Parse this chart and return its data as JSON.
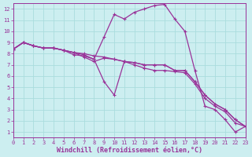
{
  "xlabel": "Windchill (Refroidissement éolien,°C)",
  "bg_color": "#cceef0",
  "grid_color": "#aadddd",
  "line_color": "#993399",
  "xlim": [
    0,
    23
  ],
  "ylim": [
    0.5,
    12.5
  ],
  "xticks": [
    0,
    1,
    2,
    3,
    4,
    5,
    6,
    7,
    8,
    9,
    10,
    11,
    12,
    13,
    14,
    15,
    16,
    17,
    18,
    19,
    20,
    21,
    22,
    23
  ],
  "yticks": [
    1,
    2,
    3,
    4,
    5,
    6,
    7,
    8,
    9,
    10,
    11,
    12
  ],
  "lw": 0.9,
  "markersize": 3.5,
  "tick_fontsize": 5.0,
  "label_fontsize": 6.0,
  "line1_x": [
    0,
    1,
    2,
    3,
    4,
    5,
    6,
    7,
    8,
    9,
    10,
    11,
    12,
    13,
    14,
    15,
    16,
    17,
    18,
    19,
    20,
    21,
    22,
    23
  ],
  "line1_y": [
    8.4,
    9.0,
    8.7,
    8.5,
    8.5,
    8.3,
    7.9,
    7.8,
    7.5,
    9.5,
    11.5,
    11.1,
    11.7,
    12.0,
    12.3,
    12.4,
    11.1,
    10.0,
    6.5,
    3.3,
    3.0,
    2.1,
    1.0,
    1.5
  ],
  "line2_x": [
    0,
    1,
    2,
    3,
    4,
    5,
    6,
    7,
    8,
    9,
    10,
    11,
    12,
    13,
    14,
    15,
    16,
    17,
    18,
    19,
    20,
    21,
    22,
    23
  ],
  "line2_y": [
    8.4,
    9.0,
    8.7,
    8.5,
    8.5,
    8.3,
    8.1,
    8.0,
    7.8,
    7.7,
    7.5,
    7.3,
    7.2,
    7.0,
    7.0,
    7.0,
    6.5,
    6.5,
    5.5,
    4.3,
    3.5,
    3.0,
    2.1,
    1.5
  ],
  "line3_x": [
    0,
    1,
    2,
    3,
    4,
    5,
    6,
    7,
    8,
    9,
    10,
    11,
    12,
    13,
    14,
    15,
    16,
    17,
    18,
    19,
    20,
    21,
    22,
    23
  ],
  "line3_y": [
    8.4,
    9.0,
    8.7,
    8.5,
    8.5,
    8.3,
    8.1,
    7.7,
    7.3,
    7.6,
    7.5,
    7.3,
    7.2,
    7.0,
    7.0,
    7.0,
    6.5,
    6.5,
    5.5,
    4.3,
    3.5,
    3.0,
    2.1,
    1.5
  ],
  "line4_x": [
    0,
    1,
    2,
    3,
    4,
    5,
    6,
    7,
    8,
    9,
    10,
    11,
    12,
    13,
    14,
    15,
    16,
    17,
    18,
    19,
    20,
    21,
    22,
    23
  ],
  "line4_y": [
    8.4,
    9.0,
    8.7,
    8.5,
    8.5,
    8.3,
    8.1,
    7.9,
    7.5,
    5.5,
    4.3,
    7.3,
    7.0,
    6.7,
    6.5,
    6.5,
    6.4,
    6.3,
    5.3,
    4.0,
    3.3,
    2.8,
    1.8,
    1.5
  ]
}
